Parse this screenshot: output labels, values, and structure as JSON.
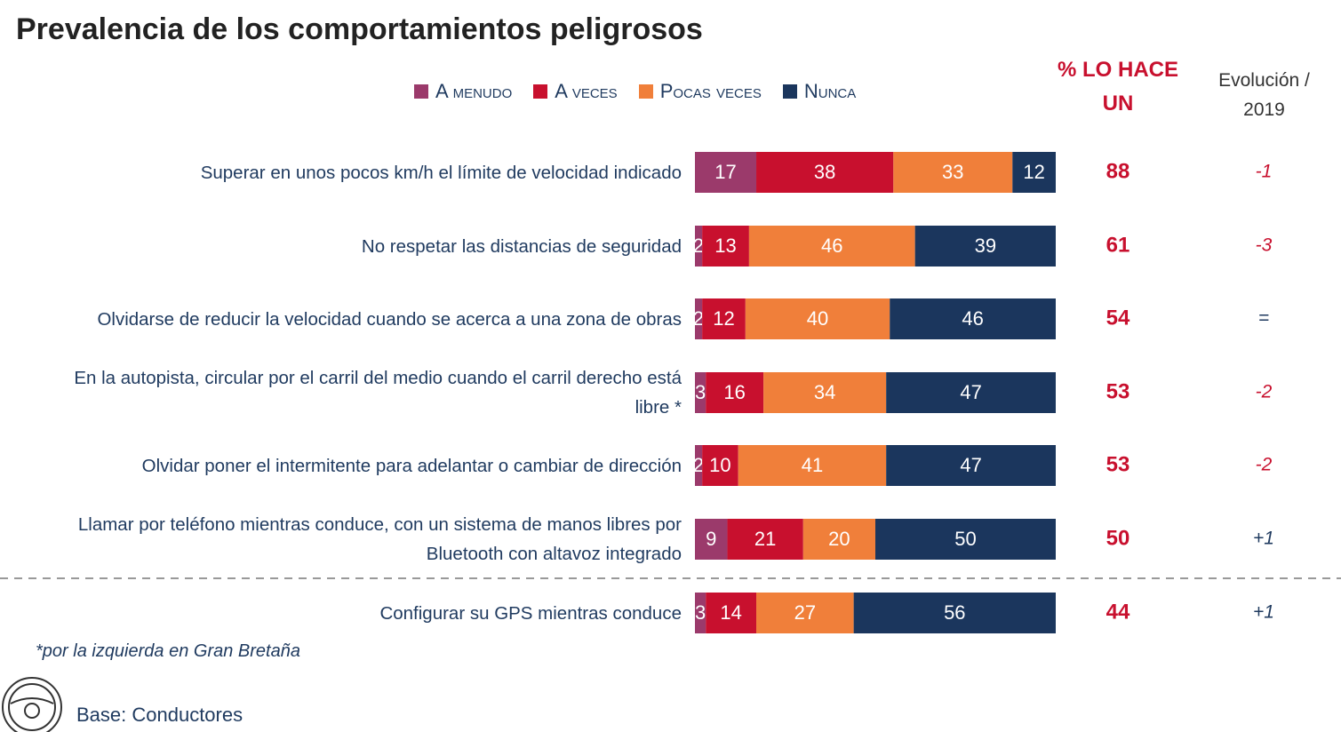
{
  "chart_data": {
    "type": "bar",
    "orientation": "horizontal",
    "stacked": true,
    "title": "Prevalencia de los comportamientos peligrosos",
    "categories": [
      "Superar en unos pocos km/h el límite de velocidad indicado",
      "No respetar las distancias de seguridad",
      "Olvidarse de reducir la velocidad cuando se acerca a una zona de obras",
      "En la autopista, circular por el carril del medio cuando el carril derecho está libre *",
      "Olvidar poner el intermitente para adelantar o cambiar de dirección",
      "Llamar por teléfono mientras conduce, con un sistema de manos libres por Bluetooth con altavoz integrado",
      "Configurar su GPS mientras conduce"
    ],
    "series": [
      {
        "name": "A menudo",
        "color": "#9b3a6b",
        "values": [
          17,
          2,
          2,
          3,
          2,
          9,
          3
        ]
      },
      {
        "name": "A veces",
        "color": "#c8102e",
        "values": [
          38,
          13,
          12,
          16,
          10,
          21,
          14
        ]
      },
      {
        "name": "Pocas veces",
        "color": "#f07f3a",
        "values": [
          33,
          46,
          40,
          34,
          41,
          20,
          27
        ]
      },
      {
        "name": "Nunca",
        "color": "#1b365d",
        "values": [
          12,
          39,
          46,
          47,
          47,
          50,
          56
        ]
      }
    ],
    "xlim": [
      0,
      100
    ],
    "legend": "top"
  },
  "summary_column": {
    "header": "% LO HACE UN",
    "values": [
      88,
      61,
      54,
      53,
      53,
      50,
      44
    ]
  },
  "evolution_column": {
    "header": "Evolución / 2019",
    "values": [
      "-1",
      "-3",
      "=",
      "-2",
      "-2",
      "+1",
      "+1"
    ]
  },
  "footnote": "*por la izquierda en Gran Bretaña",
  "base": "Base: Conductores"
}
